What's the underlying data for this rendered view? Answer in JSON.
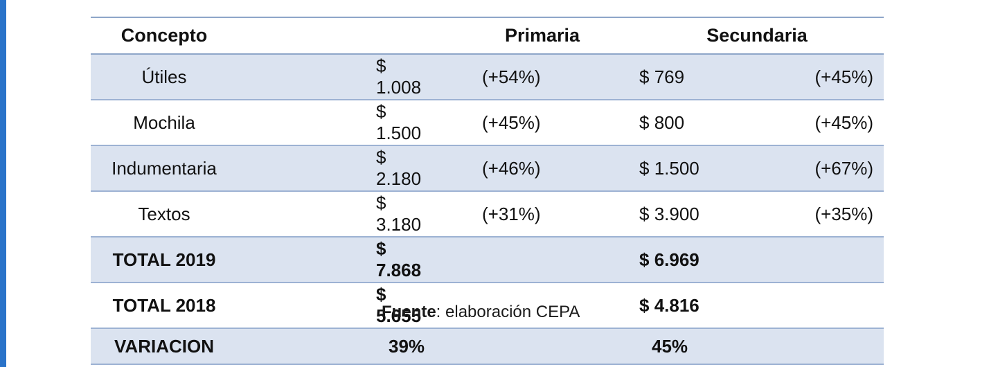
{
  "header": {
    "concepto": "Concepto",
    "primaria": "Primaria",
    "secundaria": "Secundaria"
  },
  "rows": [
    {
      "concepto": "Útiles",
      "pri_val": "$ 1.008",
      "pri_pct": "(+54%)",
      "sec_val": "$ 769",
      "sec_pct": "(+45%)"
    },
    {
      "concepto": "Mochila",
      "pri_val": "$ 1.500",
      "pri_pct": "(+45%)",
      "sec_val": "$ 800",
      "sec_pct": "(+45%)"
    },
    {
      "concepto": "Indumentaria",
      "pri_val": "$ 2.180",
      "pri_pct": "(+46%)",
      "sec_val": "$ 1.500",
      "sec_pct": "(+67%)"
    },
    {
      "concepto": "Textos",
      "pri_val": "$ 3.180",
      "pri_pct": "(+31%)",
      "sec_val": "$ 3.900",
      "sec_pct": "(+35%)"
    }
  ],
  "totals": [
    {
      "concepto": "TOTAL 2019",
      "pri_val": "$ 7.868",
      "sec_val": "$ 6.969"
    },
    {
      "concepto": "TOTAL 2018",
      "pri_val": "$ 5.655",
      "sec_val": "$ 4.816"
    },
    {
      "concepto": "VARIACION",
      "pri_val": "39%",
      "sec_val": "45%"
    }
  ],
  "source": {
    "label": "Fuente",
    "text": ": elaboración CEPA"
  },
  "colors": {
    "row_shade": "#dbe3f0",
    "border": "#9db2d3",
    "edge": "#2a73c9"
  }
}
